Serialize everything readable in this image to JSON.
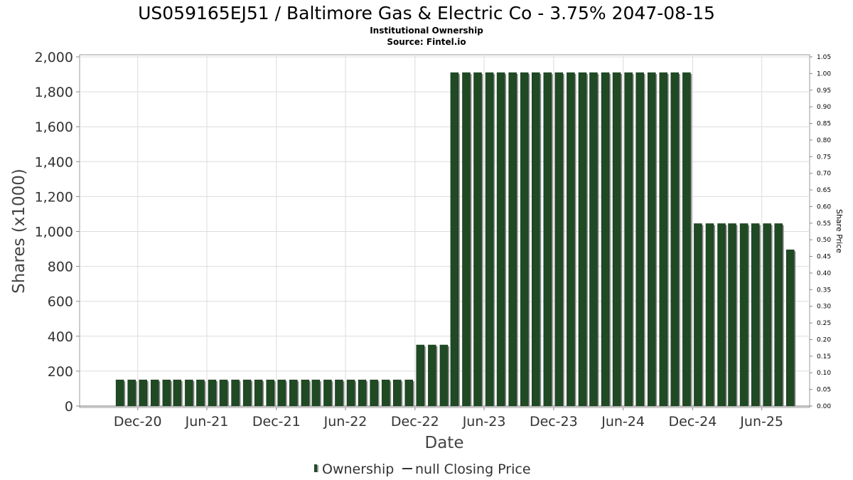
{
  "chart_data": {
    "type": "bar",
    "title": "US059165EJ51 / Baltimore Gas & Electric Co - 3.75% 2047-08-15",
    "subtitle_lines": [
      "Institutional Ownership",
      "Source: Fintel.io"
    ],
    "xlabel": "Date",
    "ylabel": "Shares (x1000)",
    "y2label": "Share Price",
    "ylim": [
      0,
      2000
    ],
    "y2lim": [
      0,
      1.05
    ],
    "x_range": [
      "2020-07-01",
      "2025-10-05"
    ],
    "yticks": [
      "0",
      "200",
      "400",
      "600",
      "800",
      "1,000",
      "1,200",
      "1,400",
      "1,600",
      "1,800",
      "2,000"
    ],
    "y2ticks": [
      "0.00",
      "0.05",
      "0.10",
      "0.15",
      "0.20",
      "0.25",
      "0.30",
      "0.35",
      "0.40",
      "0.45",
      "0.50",
      "0.55",
      "0.60",
      "0.65",
      "0.70",
      "0.75",
      "0.80",
      "0.85",
      "0.90",
      "0.95",
      "1.00",
      "1.05"
    ],
    "xticks": [
      {
        "label": "Dec-20",
        "date": "2020-12-01"
      },
      {
        "label": "Jun-21",
        "date": "2021-06-01"
      },
      {
        "label": "Dec-21",
        "date": "2021-12-01"
      },
      {
        "label": "Jun-22",
        "date": "2022-06-01"
      },
      {
        "label": "Dec-22",
        "date": "2022-12-01"
      },
      {
        "label": "Jun-23",
        "date": "2023-06-01"
      },
      {
        "label": "Dec-23",
        "date": "2023-12-01"
      },
      {
        "label": "Jun-24",
        "date": "2024-06-01"
      },
      {
        "label": "Dec-24",
        "date": "2024-12-01"
      },
      {
        "label": "Jun-25",
        "date": "2025-06-01"
      }
    ],
    "grid": true,
    "legend_position": "bottom",
    "series": [
      {
        "name": "Ownership",
        "color": "#1f4a24",
        "points": [
          {
            "date": "2020-10-15",
            "value": 150
          },
          {
            "date": "2020-11-15",
            "value": 150
          },
          {
            "date": "2020-12-15",
            "value": 150
          },
          {
            "date": "2021-01-15",
            "value": 150
          },
          {
            "date": "2021-02-15",
            "value": 150
          },
          {
            "date": "2021-03-15",
            "value": 150
          },
          {
            "date": "2021-04-15",
            "value": 150
          },
          {
            "date": "2021-05-15",
            "value": 150
          },
          {
            "date": "2021-06-15",
            "value": 150
          },
          {
            "date": "2021-07-15",
            "value": 150
          },
          {
            "date": "2021-08-15",
            "value": 150
          },
          {
            "date": "2021-09-15",
            "value": 150
          },
          {
            "date": "2021-10-15",
            "value": 150
          },
          {
            "date": "2021-11-15",
            "value": 150
          },
          {
            "date": "2021-12-15",
            "value": 150
          },
          {
            "date": "2022-01-15",
            "value": 150
          },
          {
            "date": "2022-02-15",
            "value": 150
          },
          {
            "date": "2022-03-15",
            "value": 150
          },
          {
            "date": "2022-04-15",
            "value": 150
          },
          {
            "date": "2022-05-15",
            "value": 150
          },
          {
            "date": "2022-06-15",
            "value": 150
          },
          {
            "date": "2022-07-15",
            "value": 150
          },
          {
            "date": "2022-08-15",
            "value": 150
          },
          {
            "date": "2022-09-15",
            "value": 150
          },
          {
            "date": "2022-10-15",
            "value": 150
          },
          {
            "date": "2022-11-15",
            "value": 150
          },
          {
            "date": "2022-12-15",
            "value": 350
          },
          {
            "date": "2023-01-15",
            "value": 350
          },
          {
            "date": "2023-02-15",
            "value": 350
          },
          {
            "date": "2023-03-15",
            "value": 1910
          },
          {
            "date": "2023-04-15",
            "value": 1910
          },
          {
            "date": "2023-05-15",
            "value": 1910
          },
          {
            "date": "2023-06-15",
            "value": 1910
          },
          {
            "date": "2023-07-15",
            "value": 1910
          },
          {
            "date": "2023-08-15",
            "value": 1910
          },
          {
            "date": "2023-09-15",
            "value": 1910
          },
          {
            "date": "2023-10-15",
            "value": 1910
          },
          {
            "date": "2023-11-15",
            "value": 1910
          },
          {
            "date": "2023-12-15",
            "value": 1910
          },
          {
            "date": "2024-01-15",
            "value": 1910
          },
          {
            "date": "2024-02-15",
            "value": 1910
          },
          {
            "date": "2024-03-15",
            "value": 1910
          },
          {
            "date": "2024-04-15",
            "value": 1910
          },
          {
            "date": "2024-05-15",
            "value": 1910
          },
          {
            "date": "2024-06-15",
            "value": 1910
          },
          {
            "date": "2024-07-15",
            "value": 1910
          },
          {
            "date": "2024-08-15",
            "value": 1910
          },
          {
            "date": "2024-09-15",
            "value": 1910
          },
          {
            "date": "2024-10-15",
            "value": 1910
          },
          {
            "date": "2024-11-15",
            "value": 1910
          },
          {
            "date": "2024-12-15",
            "value": 1045
          },
          {
            "date": "2025-01-15",
            "value": 1045
          },
          {
            "date": "2025-02-15",
            "value": 1045
          },
          {
            "date": "2025-03-15",
            "value": 1045
          },
          {
            "date": "2025-04-15",
            "value": 1045
          },
          {
            "date": "2025-05-15",
            "value": 1045
          },
          {
            "date": "2025-06-15",
            "value": 1045
          },
          {
            "date": "2025-07-15",
            "value": 1045
          },
          {
            "date": "2025-08-15",
            "value": 895
          }
        ]
      },
      {
        "name": "null Closing Price",
        "color": "#333333",
        "points": []
      }
    ]
  }
}
